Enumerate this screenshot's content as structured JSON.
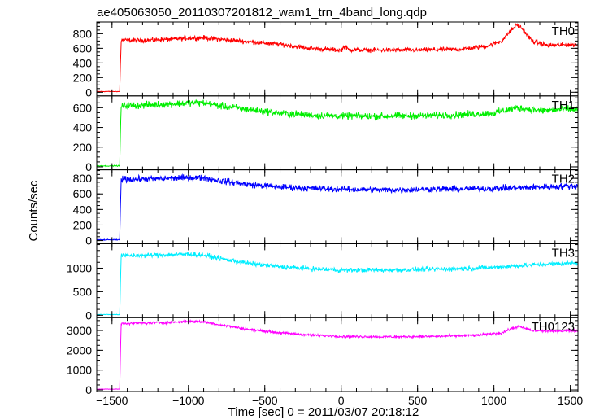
{
  "chart_data": {
    "type": "line",
    "title": "ae405063050_20110307201812_wam1_trn_4band_long.qdp",
    "xlabel": "Time [sec] 0 = 2011/03/07 20:18:12",
    "ylabel": "Counts/sec",
    "xlim": [
      -1600,
      1550
    ],
    "xticks": [
      -1500,
      -1000,
      -500,
      0,
      500,
      1000,
      1500
    ],
    "xtick_labels": [
      "−1500",
      "−1000",
      "−500",
      "0",
      "500",
      "1000",
      "1500"
    ],
    "legend": "top-right label in each panel",
    "panels": [
      {
        "name": "TH0",
        "color": "#ff0000",
        "ylim": [
          -50,
          960
        ],
        "yticks": [
          0,
          200,
          400,
          600,
          800
        ],
        "ytick_labels": [
          "0",
          "200",
          "400",
          "600",
          "800"
        ],
        "x": [
          -1600,
          -1450,
          -1440,
          -1300,
          -1100,
          -1000,
          -900,
          -800,
          -600,
          -400,
          -200,
          -50,
          0,
          20,
          50,
          200,
          500,
          800,
          950,
          1050,
          1100,
          1150,
          1180,
          1250,
          1350,
          1500
        ],
        "y": [
          10,
          10,
          710,
          710,
          725,
          740,
          745,
          725,
          690,
          655,
          600,
          580,
          570,
          630,
          580,
          575,
          575,
          590,
          630,
          700,
          820,
          920,
          880,
          700,
          640,
          650
        ],
        "noise": 22
      },
      {
        "name": "TH1",
        "color": "#00ee00",
        "ylim": [
          -30,
          720
        ],
        "yticks": [
          0,
          200,
          400,
          600
        ],
        "ytick_labels": [
          "0",
          "200",
          "400",
          "600"
        ],
        "x": [
          -1600,
          -1450,
          -1440,
          -1300,
          -1100,
          -1000,
          -900,
          -800,
          -600,
          -400,
          -200,
          0,
          300,
          600,
          800,
          1000,
          1150,
          1300,
          1500
        ],
        "y": [
          10,
          10,
          620,
          625,
          640,
          650,
          650,
          620,
          580,
          545,
          525,
          515,
          515,
          520,
          530,
          545,
          600,
          570,
          585
        ],
        "noise": 25
      },
      {
        "name": "TH2",
        "color": "#0000ff",
        "ylim": [
          -40,
          910
        ],
        "yticks": [
          0,
          200,
          400,
          600,
          800
        ],
        "ytick_labels": [
          "0",
          "200",
          "400",
          "600",
          "800"
        ],
        "x": [
          -1600,
          -1450,
          -1440,
          -1300,
          -1100,
          -1000,
          -900,
          -800,
          -600,
          -400,
          -200,
          0,
          300,
          600,
          900,
          1200,
          1500
        ],
        "y": [
          10,
          10,
          790,
          790,
          800,
          810,
          805,
          770,
          720,
          690,
          670,
          660,
          650,
          660,
          665,
          680,
          700
        ],
        "noise": 28
      },
      {
        "name": "TH3",
        "color": "#00eeff",
        "ylim": [
          -50,
          1520
        ],
        "yticks": [
          0,
          500,
          1000
        ],
        "ytick_labels": [
          "0",
          "500",
          "1000"
        ],
        "x": [
          -1600,
          -1450,
          -1440,
          -1300,
          -1100,
          -1000,
          -900,
          -800,
          -600,
          -400,
          -200,
          0,
          300,
          600,
          900,
          1200,
          1500
        ],
        "y": [
          15,
          15,
          1270,
          1270,
          1290,
          1300,
          1280,
          1210,
          1100,
          1030,
          990,
          960,
          960,
          975,
          1000,
          1060,
          1110
        ],
        "noise": 35
      },
      {
        "name": "TH0123",
        "color": "#ff00ff",
        "ylim": [
          -80,
          3650
        ],
        "yticks": [
          0,
          1000,
          2000,
          3000
        ],
        "ytick_labels": [
          "0",
          "1000",
          "2000",
          "3000"
        ],
        "x": [
          -1600,
          -1450,
          -1440,
          -1300,
          -1100,
          -1000,
          -900,
          -800,
          -600,
          -400,
          -200,
          0,
          300,
          600,
          900,
          1050,
          1120,
          1160,
          1250,
          1350,
          1500
        ],
        "y": [
          40,
          40,
          3360,
          3370,
          3420,
          3460,
          3440,
          3300,
          3050,
          2880,
          2770,
          2700,
          2680,
          2700,
          2760,
          2880,
          3100,
          3200,
          3000,
          2960,
          2990
        ],
        "noise": 45
      }
    ]
  }
}
